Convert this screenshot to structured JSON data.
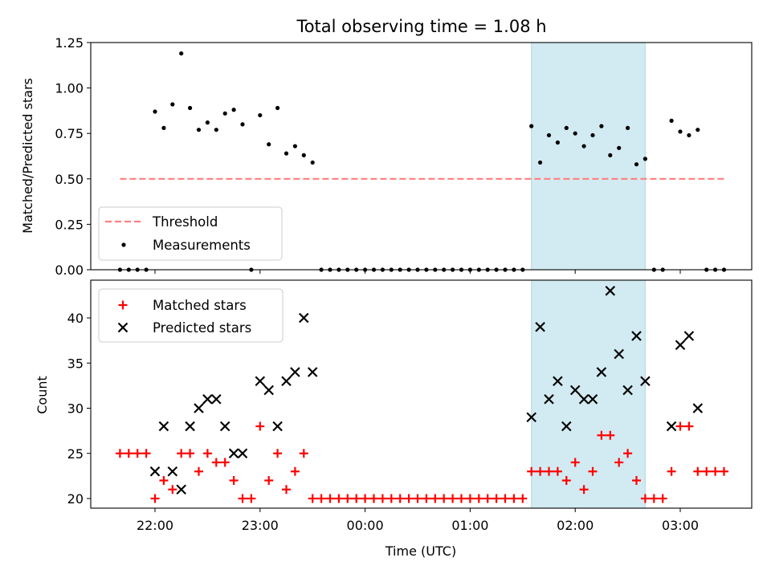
{
  "chart_data": [
    {
      "type": "scatter",
      "panel": "top",
      "title": "Total observing time = 1.08 h",
      "ylabel": "Matched/Predicted stars",
      "ylim": [
        0,
        1.25
      ],
      "yticks": [
        "0.00",
        "0.25",
        "0.50",
        "0.75",
        "1.00",
        "1.25"
      ],
      "shaded_span": [
        "01:35",
        "02:40"
      ],
      "colors": {
        "threshold": "#ff7f7f",
        "measurements": "#000000",
        "shade": "#add8e6"
      },
      "legend": {
        "position": "lower-left",
        "entries": [
          "Threshold",
          "Measurements"
        ]
      },
      "series": [
        {
          "name": "Threshold",
          "kind": "line",
          "x": [
            "21:40",
            "03:25"
          ],
          "y": [
            0.5,
            0.5
          ]
        },
        {
          "name": "Measurements",
          "kind": "points",
          "x": [
            "21:40",
            "21:45",
            "21:50",
            "21:55",
            "22:00",
            "22:05",
            "22:10",
            "22:15",
            "22:20",
            "22:25",
            "22:30",
            "22:35",
            "22:40",
            "22:45",
            "22:50",
            "22:55",
            "23:00",
            "23:05",
            "23:10",
            "23:15",
            "23:20",
            "23:25",
            "23:30",
            "23:35",
            "23:40",
            "23:45",
            "23:50",
            "23:55",
            "00:00",
            "00:05",
            "00:10",
            "00:15",
            "00:20",
            "00:25",
            "00:30",
            "00:35",
            "00:40",
            "00:45",
            "00:50",
            "00:55",
            "01:00",
            "01:05",
            "01:10",
            "01:15",
            "01:20",
            "01:25",
            "01:30",
            "01:35",
            "01:40",
            "01:45",
            "01:50",
            "01:55",
            "02:00",
            "02:05",
            "02:10",
            "02:15",
            "02:20",
            "02:25",
            "02:30",
            "02:35",
            "02:40",
            "02:45",
            "02:50",
            "02:55",
            "03:00",
            "03:05",
            "03:10",
            "03:15",
            "03:20",
            "03:25"
          ],
          "y": [
            0,
            0,
            0,
            0,
            0.87,
            0.78,
            0.91,
            1.19,
            0.89,
            0.77,
            0.81,
            0.77,
            0.86,
            0.88,
            0.8,
            0,
            0.85,
            0.69,
            0.89,
            0.64,
            0.68,
            0.63,
            0.59,
            0,
            0,
            0,
            0,
            0,
            0,
            0,
            0,
            0,
            0,
            0,
            0,
            0,
            0,
            0,
            0,
            0,
            0,
            0,
            0,
            0,
            0,
            0,
            0,
            0.79,
            0.59,
            0.74,
            0.7,
            0.78,
            0.75,
            0.68,
            0.74,
            0.79,
            0.63,
            0.67,
            0.78,
            0.58,
            0.61,
            0,
            0,
            0.82,
            0.76,
            0.74,
            0.77,
            0,
            0,
            0
          ]
        }
      ]
    },
    {
      "type": "scatter",
      "panel": "bottom",
      "xlabel": "Time (UTC)",
      "ylabel": "Count",
      "ylim": [
        19,
        44
      ],
      "yticks": [
        "20",
        "25",
        "30",
        "35",
        "40"
      ],
      "xticks": [
        "22:00",
        "23:00",
        "00:00",
        "01:00",
        "02:00",
        "03:00"
      ],
      "shaded_span": [
        "01:35",
        "02:40"
      ],
      "colors": {
        "matched": "#ff0000",
        "predicted": "#000000",
        "shade": "#add8e6"
      },
      "legend": {
        "position": "upper-left",
        "entries": [
          "Matched stars",
          "Predicted stars"
        ]
      },
      "series": [
        {
          "name": "Matched stars",
          "marker": "plus",
          "x": [
            "21:40",
            "21:45",
            "21:50",
            "21:55",
            "22:00",
            "22:05",
            "22:10",
            "22:15",
            "22:20",
            "22:25",
            "22:30",
            "22:35",
            "22:40",
            "22:45",
            "22:50",
            "22:55",
            "23:00",
            "23:05",
            "23:10",
            "23:15",
            "23:20",
            "23:25",
            "23:30",
            "23:35",
            "23:40",
            "23:45",
            "23:50",
            "23:55",
            "00:00",
            "00:05",
            "00:10",
            "00:15",
            "00:20",
            "00:25",
            "00:30",
            "00:35",
            "00:40",
            "00:45",
            "00:50",
            "00:55",
            "01:00",
            "01:05",
            "01:10",
            "01:15",
            "01:20",
            "01:25",
            "01:30",
            "01:35",
            "01:40",
            "01:45",
            "01:50",
            "01:55",
            "02:00",
            "02:05",
            "02:10",
            "02:15",
            "02:20",
            "02:25",
            "02:30",
            "02:35",
            "02:40",
            "02:45",
            "02:50",
            "02:55",
            "03:00",
            "03:05",
            "03:10",
            "03:15",
            "03:20",
            "03:25"
          ],
          "y": [
            25,
            25,
            25,
            25,
            20,
            22,
            21,
            25,
            25,
            23,
            25,
            24,
            24,
            22,
            20,
            20,
            28,
            22,
            25,
            21,
            23,
            25,
            20,
            20,
            20,
            20,
            20,
            20,
            20,
            20,
            20,
            20,
            20,
            20,
            20,
            20,
            20,
            20,
            20,
            20,
            20,
            20,
            20,
            20,
            20,
            20,
            20,
            23,
            23,
            23,
            23,
            22,
            24,
            21,
            23,
            27,
            27,
            24,
            25,
            22,
            20,
            20,
            20,
            23,
            28,
            28,
            23,
            23,
            23,
            23
          ]
        },
        {
          "name": "Predicted stars",
          "marker": "x",
          "x": [
            "22:00",
            "22:05",
            "22:10",
            "22:15",
            "22:20",
            "22:25",
            "22:30",
            "22:35",
            "22:40",
            "22:45",
            "22:50",
            "23:00",
            "23:05",
            "23:10",
            "23:15",
            "23:20",
            "23:25",
            "23:30",
            "01:35",
            "01:40",
            "01:45",
            "01:50",
            "01:55",
            "02:00",
            "02:05",
            "02:10",
            "02:15",
            "02:20",
            "02:25",
            "02:30",
            "02:35",
            "02:40",
            "02:55",
            "03:00",
            "03:05",
            "03:10"
          ],
          "y": [
            23,
            28,
            23,
            21,
            28,
            30,
            31,
            31,
            28,
            25,
            25,
            33,
            32,
            28,
            33,
            34,
            40,
            34,
            29,
            39,
            31,
            33,
            28,
            32,
            31,
            31,
            34,
            43,
            36,
            32,
            38,
            33,
            28,
            37,
            38,
            30
          ]
        }
      ]
    }
  ]
}
